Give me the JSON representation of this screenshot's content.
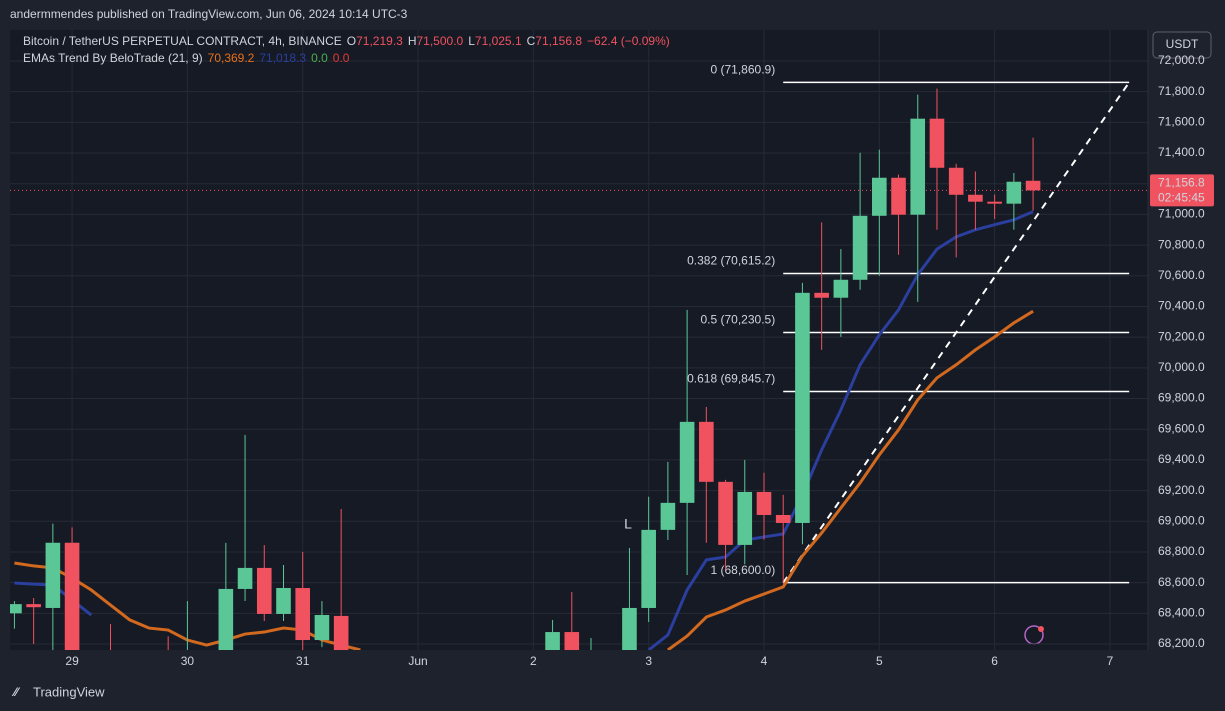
{
  "chart_data": {
    "type": "candlestick",
    "publisher": "andermmendes published on TradingView.com, Jun 06, 2024 10:14 UTC-3",
    "symbol": "Bitcoin / TetherUS PERPETUAL CONTRACT, 4h, BINANCE",
    "ohlc_labels": [
      {
        "prefix": "O",
        "text": "71,219.3"
      },
      {
        "prefix": "H",
        "text": "71,500.0"
      },
      {
        "prefix": "L",
        "text": "71,025.1"
      },
      {
        "prefix": "C",
        "text": "71,156.8"
      }
    ],
    "change": "−62.4 (−0.09%)",
    "indicator": {
      "name": "EMAs Trend By BeloTrade (21, 9)",
      "readouts": [
        {
          "text": "70,369.2",
          "color": "#e8701a"
        },
        {
          "text": "71,018.3",
          "color": "#2a3f9e"
        },
        {
          "text": "0.0",
          "color": "#4caf50"
        },
        {
          "text": "0.0",
          "color": "#e53935"
        }
      ]
    },
    "currency": "USDT",
    "signal": "L",
    "brand": "TradingView",
    "up_color": "#5cc796",
    "down_color": "#f0525f",
    "x": [
      -3,
      -2,
      -1,
      0,
      2,
      5,
      6,
      8,
      9,
      10,
      11,
      12,
      13,
      14,
      25,
      26,
      27,
      29,
      30,
      31,
      32,
      33,
      34,
      35,
      36,
      37,
      38,
      39,
      40,
      41,
      42,
      43,
      44,
      45,
      46,
      47,
      48,
      49,
      50
    ],
    "open": [
      68400,
      68460,
      68435,
      68860,
      68150,
      68100,
      68000,
      68100,
      68559,
      68696,
      68396,
      68565,
      68226,
      68383,
      68100,
      68278,
      68150,
      68120,
      68435,
      68944,
      69120,
      69648,
      69257,
      68846,
      69191,
      69041,
      68989,
      70489,
      70457,
      70574,
      70991,
      71239,
      70998,
      71624,
      71304,
      71128,
      71083,
      71070,
      71219.3
    ],
    "high": [
      68480,
      68500,
      68985,
      68960,
      68330,
      68250,
      68480,
      68859,
      69563,
      68845,
      68715,
      68800,
      68480,
      69080,
      68357,
      68539,
      68239,
      68826,
      69160,
      69387,
      70378,
      69745,
      69270,
      69400,
      69316,
      69172,
      70554,
      70948,
      70774,
      71402,
      71422,
      71260,
      71781,
      71820,
      71330,
      71280,
      71130,
      71270,
      71500
    ],
    "low": [
      68300,
      68200,
      68100,
      67900,
      68000,
      67980,
      67950,
      68050,
      68480,
      68350,
      68350,
      68150,
      68180,
      68000,
      68050,
      68050,
      68100,
      68080,
      68343,
      68878,
      68650,
      68860,
      68683,
      68720,
      68880,
      68600,
      68850,
      70117,
      70202,
      70509,
      70600,
      70737,
      70430,
      70900,
      70720,
      70900,
      70970,
      70900,
      71025.1
    ],
    "close": [
      68460,
      68440,
      68860,
      68000,
      68100,
      68050,
      68120,
      68559,
      68696,
      68396,
      68565,
      68226,
      68389,
      68120,
      68278,
      68100,
      68160,
      68435,
      68944,
      69120,
      69648,
      69257,
      68846,
      69191,
      69041,
      68989,
      70489,
      70457,
      70574,
      70991,
      71239,
      70998,
      71624,
      71304,
      71128,
      71083,
      71070,
      71213,
      71156.8
    ],
    "series": [
      {
        "name": "EMA 21",
        "color": "#2a3f9e",
        "x": [
          -3,
          -2,
          -1,
          0,
          1,
          2,
          30,
          31,
          32,
          33,
          34,
          35,
          36,
          37,
          38,
          39,
          40,
          41,
          42,
          43,
          44,
          45,
          46,
          47,
          48,
          49,
          50
        ],
        "values": [
          68598,
          68590,
          68585,
          68487,
          68389,
          null,
          68161,
          68259,
          68552,
          68748,
          68767,
          68878,
          68898,
          68917,
          69172,
          69465,
          69726,
          70020,
          70215,
          70378,
          70607,
          70774,
          70854,
          70900,
          70933,
          70965,
          71018.3
        ]
      },
      {
        "name": "EMA 9",
        "color": "#d2691e",
        "x": [
          -3,
          -2,
          -1,
          0,
          1,
          2,
          3,
          4,
          5,
          6,
          7,
          8,
          9,
          10,
          11,
          12,
          13,
          14,
          15,
          20,
          31,
          32,
          33,
          34,
          35,
          36,
          37,
          38,
          39,
          40,
          41,
          42,
          43,
          44,
          45,
          46,
          47,
          48,
          49,
          50
        ],
        "values": [
          68728,
          68709,
          68696,
          68630,
          68552,
          68454,
          68357,
          68304,
          68291,
          68226,
          68193,
          68226,
          68265,
          68278,
          68304,
          68291,
          68226,
          68193,
          68161,
          null,
          68161,
          68252,
          68376,
          68422,
          68480,
          68526,
          68572,
          68774,
          68924,
          69087,
          69250,
          69433,
          69596,
          69791,
          69935,
          70020,
          70117,
          70202,
          70293,
          70369.2
        ]
      }
    ],
    "fib": {
      "x": [
        37,
        55
      ],
      "levels": [
        {
          "value": 71860.9,
          "label": "0 (71,860.9)"
        },
        {
          "value": 70615.2,
          "label": "0.382 (70,615.2)"
        },
        {
          "value": 70230.5,
          "label": "0.5 (70,230.5)"
        },
        {
          "value": 69845.7,
          "label": "0.618 (69,845.7)"
        },
        {
          "value": 68600,
          "label": "1 (68,600.0)"
        }
      ]
    },
    "last_price": {
      "value": 71156.8,
      "label": "71,156.8"
    },
    "countdown": "02:45:45",
    "xlim": [
      -3.23,
      55.98
    ],
    "xticks": [
      {
        "value": 0,
        "label": "29"
      },
      {
        "value": 6,
        "label": "30"
      },
      {
        "value": 12,
        "label": "31"
      },
      {
        "value": 18,
        "label": "Jun"
      },
      {
        "value": 24,
        "label": "2"
      },
      {
        "value": 30,
        "label": "3"
      },
      {
        "value": 36,
        "label": "4"
      },
      {
        "value": 42,
        "label": "5"
      },
      {
        "value": 48,
        "label": "6"
      },
      {
        "value": 54,
        "label": "7"
      }
    ],
    "ylim": [
      68161,
      72202
    ],
    "yticks": [
      {
        "value": 68200,
        "label": "68,200.0"
      },
      {
        "value": 68400,
        "label": "68,400.0"
      },
      {
        "value": 68600,
        "label": "68,600.0"
      },
      {
        "value": 68800,
        "label": "68,800.0"
      },
      {
        "value": 69000,
        "label": "69,000.0"
      },
      {
        "value": 69200,
        "label": "69,200.0"
      },
      {
        "value": 69400,
        "label": "69,400.0"
      },
      {
        "value": 69600,
        "label": "69,600.0"
      },
      {
        "value": 69800,
        "label": "69,800.0"
      },
      {
        "value": 70000,
        "label": "70,000.0"
      },
      {
        "value": 70200,
        "label": "70,200.0"
      },
      {
        "value": 70400,
        "label": "70,400.0"
      },
      {
        "value": 70600,
        "label": "70,600.0"
      },
      {
        "value": 70800,
        "label": "70,800.0"
      },
      {
        "value": 71000,
        "label": "71,000.0"
      },
      {
        "value": 71200,
        "label": "71,200.0"
      },
      {
        "value": 71400,
        "label": "71,400.0"
      },
      {
        "value": 71600,
        "label": "71,600.0"
      },
      {
        "value": 71800,
        "label": "71,800.0"
      },
      {
        "value": 72000,
        "label": "72,000.0"
      }
    ],
    "grid": true
  }
}
